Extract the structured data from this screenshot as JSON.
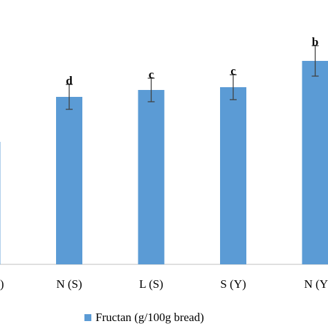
{
  "chart_data": {
    "type": "bar",
    "categories": [
      ")",
      "N (S)",
      "L (S)",
      "S (Y)",
      "N (Y"
    ],
    "series": [
      {
        "name": "Fructan (g/100g bread)",
        "color": "#5b9bd5",
        "values": [
          177,
          242,
          252,
          256,
          294
        ],
        "errors": [
          null,
          18,
          17,
          18,
          22
        ],
        "annotations": [
          null,
          "d",
          "c",
          "c",
          "b"
        ]
      }
    ],
    "ylim": [
      0,
      300
    ]
  }
}
